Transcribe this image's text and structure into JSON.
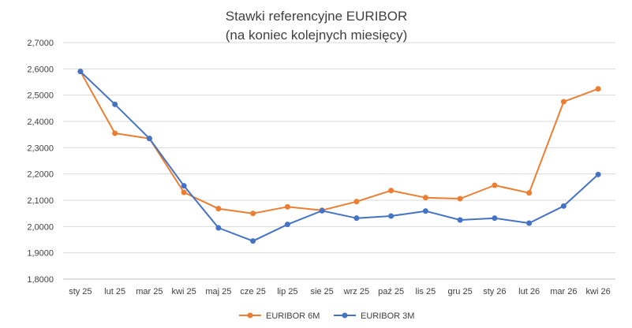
{
  "chart_data": {
    "type": "line",
    "title": "Stawki referencyjne EURIBOR",
    "subtitle": "(na koniec kolejnych miesięcy)",
    "categories": [
      "sty 25",
      "lut 25",
      "mar 25",
      "kwi 25",
      "maj 25",
      "cze 25",
      "lip 25",
      "sie 25",
      "wrz 25",
      "paź 25",
      "lis 25",
      "gru 25",
      "sty 26",
      "lut 26",
      "mar 26",
      "kwi 26"
    ],
    "ylim": [
      1.8,
      2.7
    ],
    "yticks": [
      "1,8000",
      "1,9000",
      "2,0000",
      "2,1000",
      "2,2000",
      "2,3000",
      "2,4000",
      "2,5000",
      "2,6000",
      "2,7000"
    ],
    "grid": "horizontal",
    "legend_position": "bottom",
    "series": [
      {
        "name": "EURIBOR 6M",
        "color": "#ED7D31",
        "values": [
          2.59,
          2.355,
          2.335,
          2.13,
          2.068,
          2.05,
          2.075,
          2.062,
          2.095,
          2.137,
          2.11,
          2.106,
          2.157,
          2.128,
          2.475,
          2.524
        ]
      },
      {
        "name": "EURIBOR 3M",
        "color": "#4472C4",
        "values": [
          2.59,
          2.465,
          2.335,
          2.155,
          1.995,
          1.945,
          2.008,
          2.06,
          2.032,
          2.04,
          2.059,
          2.025,
          2.032,
          2.013,
          2.078,
          2.198
        ]
      }
    ],
    "gridline_color": "#D9D9D9"
  }
}
